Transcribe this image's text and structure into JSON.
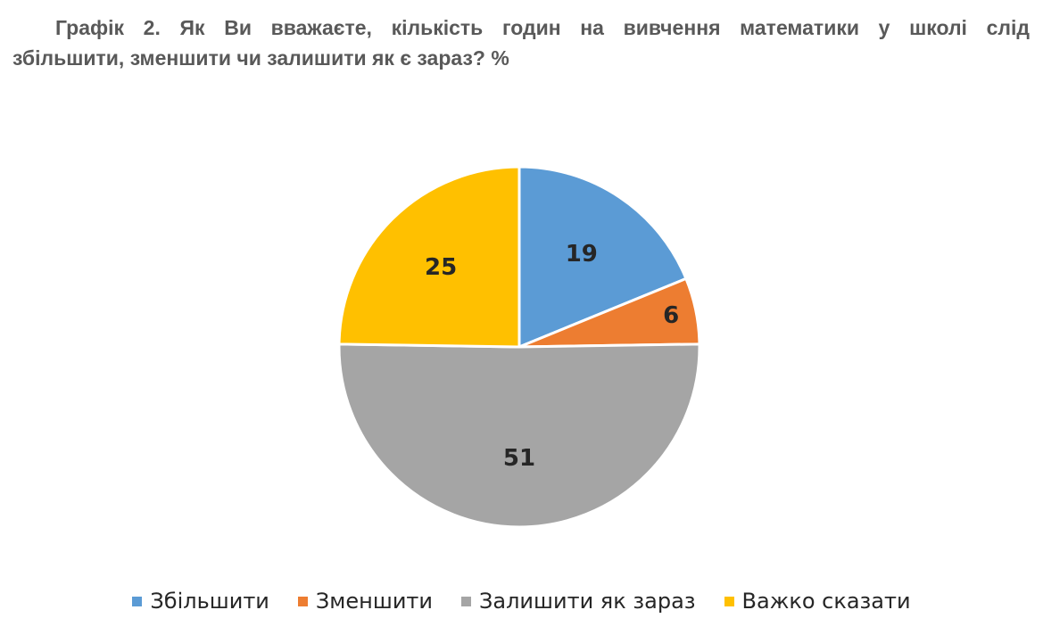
{
  "title": {
    "line1": "Графік 2. Як Ви вважаєте, кількість годин на вивчення  математики у школі слід",
    "line2": "збільшити, зменшити чи залишити як є зараз? %"
  },
  "chart_data": {
    "type": "pie",
    "title": "Графік 2. Як Ви вважаєте, кількість годин на вивчення  математики у школі слід збільшити, зменшити чи залишити як є зараз? %",
    "legend_position": "bottom",
    "slices": [
      {
        "label": "Збільшити",
        "value": 19,
        "color": "#5b9bd5"
      },
      {
        "label": "Зменшити",
        "value": 6,
        "color": "#ed7d31"
      },
      {
        "label": "Залишити як зараз",
        "value": 51,
        "color": "#a5a5a5"
      },
      {
        "label": "Важко сказати",
        "value": 25,
        "color": "#ffc000"
      }
    ]
  }
}
